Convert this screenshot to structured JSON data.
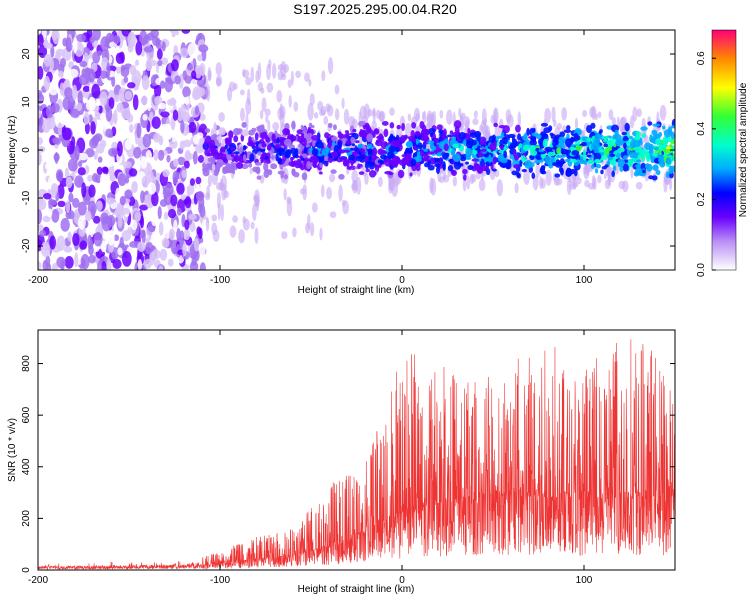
{
  "title": "S197.2025.295.00.04.R20",
  "chart_data": [
    {
      "type": "heatmap",
      "name": "spectrogram",
      "xlabel": "Height of straight line (km)",
      "ylabel": "Frequency (Hz)",
      "xlim": [
        -200,
        150
      ],
      "ylim": [
        -25,
        25
      ],
      "x_ticks": [
        -200,
        -100,
        0,
        100
      ],
      "y_ticks": [
        -20,
        -10,
        0,
        10,
        20
      ],
      "colorbar": {
        "label": "Normalized spectral amplitude",
        "range": [
          0,
          0.68
        ],
        "ticks": [
          0.0,
          0.2,
          0.4,
          0.6
        ]
      },
      "regions": [
        {
          "x_range": [
            -200,
            -108
          ],
          "freq_range": [
            -25,
            25
          ],
          "amplitude": "low (0.0-0.1)",
          "description": "broadband noise"
        },
        {
          "x_range": [
            -108,
            150
          ],
          "freq_center": 0,
          "freq_halfwidth_hz": 5,
          "amplitude": "0.1-0.6",
          "description": "signal band"
        }
      ]
    },
    {
      "type": "line",
      "name": "snr",
      "xlabel": "Height of straight line (km)",
      "ylabel": "SNR (10 * v/v)",
      "xlim": [
        -200,
        150
      ],
      "ylim": [
        0,
        930
      ],
      "x_ticks": [
        -200,
        -100,
        0,
        100
      ],
      "y_ticks": [
        0,
        200,
        400,
        600,
        800
      ],
      "color": "#ee3333",
      "envelope": {
        "x": [
          -200,
          -150,
          -120,
          -100,
          -80,
          -60,
          -40,
          -20,
          0,
          20,
          40,
          60,
          80,
          100,
          120,
          140,
          150
        ],
        "baseline": [
          10,
          12,
          15,
          25,
          40,
          55,
          90,
          150,
          220,
          260,
          280,
          290,
          280,
          285,
          280,
          285,
          280
        ],
        "peak": [
          30,
          30,
          40,
          70,
          130,
          160,
          330,
          420,
          860,
          800,
          750,
          810,
          900,
          780,
          920,
          850,
          670
        ]
      }
    }
  ]
}
